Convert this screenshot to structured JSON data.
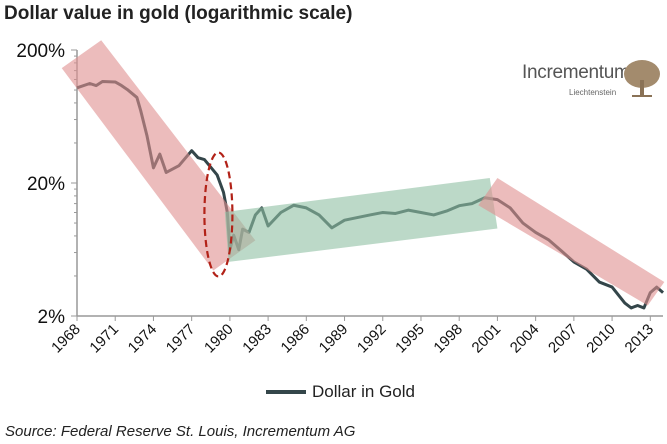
{
  "title": "Dollar value in gold (logarithmic scale)",
  "source": "Source: Federal Reserve St. Louis, Incrementum AG",
  "logo": {
    "name": "Incrementum",
    "sub": "Liechtenstein",
    "color": "#a38b6d"
  },
  "chart_data": {
    "type": "line",
    "title": "Dollar value in gold (logarithmic scale)",
    "xlabel": "",
    "ylabel": "",
    "y_scale": "log",
    "ylim": [
      2,
      200
    ],
    "xlim": [
      1968,
      2014
    ],
    "y_ticks": [
      {
        "value": 2,
        "label": "2%"
      },
      {
        "value": 20,
        "label": "20%"
      },
      {
        "value": 200,
        "label": "200%"
      }
    ],
    "x_ticks": [
      "1968",
      "1971",
      "1974",
      "1977",
      "1980",
      "1983",
      "1986",
      "1989",
      "1992",
      "1995",
      "1998",
      "2001",
      "2004",
      "2007",
      "2010",
      "2013"
    ],
    "legend": "bottom",
    "grid": false,
    "series": [
      {
        "name": "Dollar in Gold",
        "color": "#34464a",
        "x": [
          1968,
          1969,
          1969.5,
          1970,
          1971,
          1971.5,
          1972,
          1972.7,
          1973,
          1973.5,
          1974,
          1974.5,
          1975,
          1976,
          1977,
          1977.5,
          1978,
          1979,
          1979.5,
          1979.8,
          1980,
          1980.3,
          1980.7,
          1981,
          1981.5,
          1982,
          1982.5,
          1983,
          1984,
          1985,
          1986,
          1987,
          1988,
          1989,
          1990,
          1991,
          1992,
          1993,
          1994,
          1995,
          1996,
          1997,
          1998,
          1999,
          2000,
          2001,
          2002,
          2003,
          2004,
          2005,
          2006,
          2007,
          2008,
          2009,
          2010,
          2011,
          2011.5,
          2012,
          2012.5,
          2013,
          2013.5,
          2014
        ],
        "y": [
          104,
          112,
          108,
          116,
          115,
          108,
          100,
          88,
          70,
          45,
          26,
          33,
          24,
          27,
          35,
          31,
          30,
          23,
          17,
          12,
          6.3,
          8.1,
          6.3,
          9,
          8.5,
          11.5,
          13,
          9.5,
          12,
          13.6,
          13,
          11.5,
          9.2,
          10.5,
          11,
          11.5,
          12,
          11.8,
          12.5,
          12,
          11.5,
          12.3,
          13.5,
          14,
          15.5,
          15,
          13,
          10,
          8.5,
          7.5,
          6.2,
          5.1,
          4.5,
          3.6,
          3.3,
          2.5,
          2.3,
          2.4,
          2.3,
          3,
          3.3,
          3
        ]
      }
    ],
    "annotations": [
      {
        "type": "band",
        "color": "#e09090",
        "points": [
          [
            1966.8,
            146
          ],
          [
            1969.9,
            237
          ],
          [
            1982.0,
            7.4
          ],
          [
            1978.7,
            4.4
          ]
        ]
      },
      {
        "type": "band",
        "color": "#8fbfa3",
        "points": [
          [
            1979.6,
            12.1
          ],
          [
            2000.4,
            21.8
          ],
          [
            2001.0,
            9.1
          ],
          [
            1979.9,
            5.1
          ]
        ]
      },
      {
        "type": "band",
        "color": "#e09090",
        "points": [
          [
            1999.5,
            13.6
          ],
          [
            2001.0,
            21.8
          ],
          [
            2014.1,
            3.6
          ],
          [
            2012.8,
            2.4
          ]
        ]
      },
      {
        "type": "dashed-ellipse",
        "color": "#b22218",
        "center": [
          1979.1,
          11.6
        ]
      }
    ]
  }
}
